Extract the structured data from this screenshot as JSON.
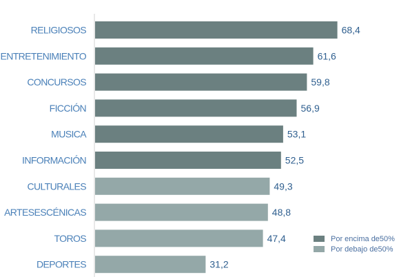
{
  "chart_data": {
    "type": "bar",
    "orientation": "horizontal",
    "categories": [
      "RELIGIOSOS",
      "ENTRETENIMIENTO",
      "CONCURSOS",
      "FICCIÓN",
      "MUSICA",
      "INFORMACIÓN",
      "CULTURALES",
      "ARTESESCÉNICAS",
      "TOROS",
      "DEPORTES"
    ],
    "values": [
      68.4,
      61.6,
      59.8,
      56.9,
      53.1,
      52.5,
      49.3,
      48.8,
      47.4,
      31.2
    ],
    "value_labels": [
      "68,4",
      "61,6",
      "59,8",
      "56,9",
      "53,1",
      "52,5",
      "49,3",
      "48,8",
      "47,4",
      "31,2"
    ],
    "groups": [
      "above",
      "above",
      "above",
      "above",
      "above",
      "above",
      "below",
      "below",
      "below",
      "below"
    ],
    "legend": [
      {
        "key": "above",
        "label": "Por encima de50%",
        "color": "#6b8080"
      },
      {
        "key": "below",
        "label": "Por debajo de50%",
        "color": "#94a8a8"
      }
    ],
    "legend_position": "bottom-right",
    "xlim": [
      0,
      75
    ],
    "grid": false,
    "title": "",
    "xlabel": "",
    "ylabel": ""
  }
}
